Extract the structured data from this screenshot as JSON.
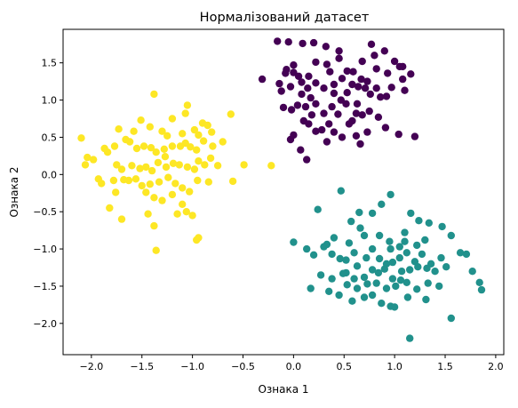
{
  "chart_data": {
    "type": "scatter",
    "title": "Нормалізований датасет",
    "xlabel": "Ознака 1",
    "ylabel": "Ознака 2",
    "xlim": [
      -2.28,
      2.08
    ],
    "ylim": [
      -2.42,
      1.95
    ],
    "xticks": [
      -2.0,
      -1.5,
      -1.0,
      -0.5,
      0.0,
      0.5,
      1.0,
      1.5,
      2.0
    ],
    "xtick_labels": [
      "−2.0",
      "−1.5",
      "−1.0",
      "−0.5",
      "0.0",
      "0.5",
      "1.0",
      "1.5",
      "2.0"
    ],
    "yticks": [
      -2.0,
      -1.5,
      -1.0,
      -0.5,
      0.0,
      0.5,
      1.0,
      1.5
    ],
    "ytick_labels": [
      "−2.0",
      "−1.5",
      "−1.0",
      "−0.5",
      "0.0",
      "0.5",
      "1.0",
      "1.5"
    ],
    "grid": false,
    "series": [
      {
        "color": "#440154",
        "points": [
          [
            -0.16,
            1.79
          ],
          [
            -0.05,
            1.78
          ],
          [
            0.09,
            1.76
          ],
          [
            0.2,
            1.77
          ],
          [
            0.32,
            1.72
          ],
          [
            0.45,
            1.66
          ],
          [
            0.45,
            1.56
          ],
          [
            0.22,
            1.51
          ],
          [
            0.33,
            1.48
          ],
          [
            0.0,
            1.47
          ],
          [
            0.77,
            1.75
          ],
          [
            0.9,
            1.66
          ],
          [
            1.0,
            1.52
          ],
          [
            1.05,
            1.45
          ],
          [
            1.08,
            1.45
          ],
          [
            1.16,
            1.35
          ],
          [
            0.8,
            1.6
          ],
          [
            -0.07,
            1.41
          ],
          [
            0.0,
            1.37
          ],
          [
            -0.08,
            1.36
          ],
          [
            0.05,
            1.32
          ],
          [
            0.15,
            1.32
          ],
          [
            0.36,
            1.38
          ],
          [
            0.53,
            1.39
          ],
          [
            0.59,
            1.38
          ],
          [
            0.67,
            1.28
          ],
          [
            0.73,
            1.25
          ],
          [
            0.82,
            1.42
          ],
          [
            0.68,
            1.52
          ],
          [
            -0.14,
            1.22
          ],
          [
            -0.12,
            1.12
          ],
          [
            -0.03,
            1.18
          ],
          [
            0.08,
            1.24
          ],
          [
            0.14,
            1.16
          ],
          [
            0.22,
            1.23
          ],
          [
            0.3,
            1.16
          ],
          [
            0.4,
            1.21
          ],
          [
            0.48,
            1.29
          ],
          [
            0.58,
            1.21
          ],
          [
            0.64,
            1.18
          ],
          [
            0.71,
            1.16
          ],
          [
            0.76,
            1.08
          ],
          [
            0.82,
            1.16
          ],
          [
            0.86,
            1.04
          ],
          [
            0.92,
            1.05
          ],
          [
            0.97,
            1.17
          ],
          [
            1.08,
            1.28
          ],
          [
            1.1,
            1.13
          ],
          [
            -0.1,
            0.9
          ],
          [
            -0.02,
            0.87
          ],
          [
            0.04,
            0.93
          ],
          [
            0.12,
            0.91
          ],
          [
            0.17,
            1.03
          ],
          [
            0.22,
            0.95
          ],
          [
            0.08,
            1.08
          ],
          [
            0.3,
            0.82
          ],
          [
            0.38,
            0.91
          ],
          [
            0.47,
            1.0
          ],
          [
            0.52,
            0.95
          ],
          [
            0.62,
            0.82
          ],
          [
            0.63,
            0.95
          ],
          [
            0.68,
            0.8
          ],
          [
            0.75,
            0.85
          ],
          [
            0.84,
            0.77
          ],
          [
            0.91,
            0.63
          ],
          [
            0.1,
            0.72
          ],
          [
            0.15,
            0.68
          ],
          [
            0.22,
            0.58
          ],
          [
            0.28,
            0.6
          ],
          [
            0.35,
            0.68
          ],
          [
            0.4,
            0.57
          ],
          [
            0.48,
            0.5
          ],
          [
            0.55,
            0.68
          ],
          [
            0.62,
            0.52
          ],
          [
            0.66,
            0.41
          ],
          [
            0.73,
            0.57
          ],
          [
            -0.03,
            0.47
          ],
          [
            0.07,
            0.33
          ],
          [
            0.13,
            0.2
          ],
          [
            -0.31,
            1.28
          ],
          [
            1.04,
            0.54
          ],
          [
            1.2,
            0.51
          ],
          [
            0.33,
            0.44
          ],
          [
            0.0,
            0.53
          ],
          [
            0.44,
            0.81
          ],
          [
            0.53,
            1.1
          ],
          [
            0.93,
            1.36
          ],
          [
            0.18,
            0.8
          ],
          [
            0.4,
            1.09
          ],
          [
            0.58,
            0.72
          ]
        ]
      },
      {
        "color": "#21918c",
        "points": [
          [
            0.47,
            -0.22
          ],
          [
            0.96,
            -0.27
          ],
          [
            0.87,
            -0.4
          ],
          [
            0.24,
            -0.47
          ],
          [
            0.65,
            -0.51
          ],
          [
            0.78,
            -0.52
          ],
          [
            1.16,
            -0.52
          ],
          [
            1.24,
            -0.62
          ],
          [
            1.34,
            -0.65
          ],
          [
            0.57,
            -0.63
          ],
          [
            1.47,
            -0.7
          ],
          [
            1.1,
            -0.78
          ],
          [
            0.66,
            -0.72
          ],
          [
            0.0,
            -0.91
          ],
          [
            0.4,
            -0.85
          ],
          [
            0.33,
            -0.94
          ],
          [
            0.55,
            -0.92
          ],
          [
            0.7,
            -0.82
          ],
          [
            0.85,
            -0.82
          ],
          [
            0.95,
            -0.9
          ],
          [
            0.96,
            -1.0
          ],
          [
            1.05,
            -0.97
          ],
          [
            1.1,
            -0.9
          ],
          [
            1.22,
            -0.95
          ],
          [
            1.3,
            -0.88
          ],
          [
            1.56,
            -0.82
          ],
          [
            0.13,
            -1.0
          ],
          [
            0.2,
            -1.08
          ],
          [
            0.3,
            -0.97
          ],
          [
            0.38,
            -1.07
          ],
          [
            0.46,
            -1.13
          ],
          [
            0.52,
            -1.15
          ],
          [
            0.6,
            -1.05
          ],
          [
            0.72,
            -1.12
          ],
          [
            0.78,
            -1.0
          ],
          [
            0.85,
            -1.13
          ],
          [
            0.92,
            -1.2
          ],
          [
            0.98,
            -1.18
          ],
          [
            1.05,
            -1.12
          ],
          [
            1.12,
            -1.05
          ],
          [
            1.2,
            -1.17
          ],
          [
            1.27,
            -1.07
          ],
          [
            1.36,
            -1.2
          ],
          [
            1.46,
            -1.12
          ],
          [
            1.65,
            -1.05
          ],
          [
            1.71,
            -1.07
          ],
          [
            0.27,
            -1.35
          ],
          [
            0.38,
            -1.4
          ],
          [
            0.52,
            -1.32
          ],
          [
            0.63,
            -1.23
          ],
          [
            0.7,
            -1.38
          ],
          [
            0.78,
            -1.28
          ],
          [
            0.84,
            -1.32
          ],
          [
            0.9,
            -1.27
          ],
          [
            0.98,
            -1.4
          ],
          [
            1.07,
            -1.3
          ],
          [
            1.15,
            -1.28
          ],
          [
            1.23,
            -1.24
          ],
          [
            1.32,
            -1.26
          ],
          [
            1.4,
            -1.3
          ],
          [
            1.51,
            -1.24
          ],
          [
            1.77,
            -1.3
          ],
          [
            1.84,
            -1.45
          ],
          [
            0.17,
            -1.53
          ],
          [
            0.35,
            -1.57
          ],
          [
            0.45,
            -1.62
          ],
          [
            0.53,
            -1.48
          ],
          [
            0.63,
            -1.53
          ],
          [
            0.73,
            -1.47
          ],
          [
            0.82,
            -1.46
          ],
          [
            0.92,
            -1.53
          ],
          [
            1.01,
            -1.5
          ],
          [
            1.12,
            -1.45
          ],
          [
            1.22,
            -1.54
          ],
          [
            1.33,
            -1.46
          ],
          [
            1.44,
            -1.5
          ],
          [
            0.58,
            -1.7
          ],
          [
            0.7,
            -1.65
          ],
          [
            0.78,
            -1.62
          ],
          [
            0.87,
            -1.73
          ],
          [
            0.96,
            -1.77
          ],
          [
            1.13,
            -1.65
          ],
          [
            1.31,
            -1.68
          ],
          [
            1.56,
            -1.93
          ],
          [
            1.15,
            -2.2
          ],
          [
            1.86,
            -1.55
          ],
          [
            1.0,
            -1.78
          ],
          [
            0.49,
            -1.33
          ],
          [
            1.06,
            -1.42
          ],
          [
            0.6,
            -1.4
          ]
        ]
      },
      {
        "color": "#fde725",
        "points": [
          [
            -1.38,
            1.08
          ],
          [
            -1.05,
            0.93
          ],
          [
            -1.51,
            0.73
          ],
          [
            -1.2,
            0.75
          ],
          [
            -1.07,
            0.82
          ],
          [
            -0.9,
            0.69
          ],
          [
            -0.81,
            0.57
          ],
          [
            -0.62,
            0.81
          ],
          [
            -0.85,
            0.66
          ],
          [
            -1.73,
            0.61
          ],
          [
            -1.58,
            0.58
          ],
          [
            -1.42,
            0.64
          ],
          [
            -1.3,
            0.58
          ],
          [
            -1.25,
            0.52
          ],
          [
            -1.1,
            0.55
          ],
          [
            -0.98,
            0.6
          ],
          [
            -0.94,
            0.53
          ],
          [
            -2.1,
            0.49
          ],
          [
            -2.04,
            0.23
          ],
          [
            -1.98,
            0.2
          ],
          [
            -1.87,
            0.35
          ],
          [
            -1.84,
            0.3
          ],
          [
            -1.77,
            0.38
          ],
          [
            -1.66,
            0.47
          ],
          [
            -1.62,
            0.44
          ],
          [
            -1.55,
            0.35
          ],
          [
            -1.48,
            0.38
          ],
          [
            -1.41,
            0.36
          ],
          [
            -1.36,
            0.3
          ],
          [
            -1.28,
            0.34
          ],
          [
            -1.2,
            0.38
          ],
          [
            -1.12,
            0.38
          ],
          [
            -1.07,
            0.42
          ],
          [
            -1.02,
            0.37
          ],
          [
            -0.96,
            0.33
          ],
          [
            -0.89,
            0.45
          ],
          [
            -0.82,
            0.22
          ],
          [
            -0.7,
            0.44
          ],
          [
            -2.06,
            0.13
          ],
          [
            -1.75,
            0.13
          ],
          [
            -1.7,
            0.07
          ],
          [
            -1.6,
            0.12
          ],
          [
            -1.52,
            0.08
          ],
          [
            -1.46,
            0.1
          ],
          [
            -1.4,
            0.05
          ],
          [
            -1.34,
            0.16
          ],
          [
            -1.26,
            0.1
          ],
          [
            -1.19,
            0.15
          ],
          [
            -1.13,
            0.13
          ],
          [
            -1.05,
            0.1
          ],
          [
            -0.98,
            0.07
          ],
          [
            -0.94,
            0.18
          ],
          [
            -0.88,
            0.13
          ],
          [
            -0.75,
            0.12
          ],
          [
            -0.49,
            0.13
          ],
          [
            -0.22,
            0.12
          ],
          [
            -1.93,
            -0.06
          ],
          [
            -1.78,
            -0.08
          ],
          [
            -1.68,
            -0.07
          ],
          [
            -1.56,
            -0.06
          ],
          [
            -1.5,
            -0.15
          ],
          [
            -1.42,
            -0.13
          ],
          [
            -1.33,
            -0.1
          ],
          [
            -1.24,
            -0.04
          ],
          [
            -1.17,
            -0.12
          ],
          [
            -1.1,
            -0.18
          ],
          [
            -1.03,
            -0.23
          ],
          [
            -0.95,
            -0.08
          ],
          [
            -0.84,
            -0.1
          ],
          [
            -0.6,
            -0.09
          ],
          [
            -1.9,
            -0.12
          ],
          [
            -1.46,
            -0.24
          ],
          [
            -1.38,
            -0.31
          ],
          [
            -1.3,
            -0.35
          ],
          [
            -1.2,
            -0.27
          ],
          [
            -1.1,
            -0.4
          ],
          [
            -1.06,
            -0.5
          ],
          [
            -1.0,
            -0.55
          ],
          [
            -1.76,
            -0.24
          ],
          [
            -1.82,
            -0.45
          ],
          [
            -1.7,
            -0.6
          ],
          [
            -1.44,
            -0.53
          ],
          [
            -1.38,
            -0.69
          ],
          [
            -0.96,
            -0.88
          ],
          [
            -0.94,
            -0.85
          ],
          [
            -1.36,
            -1.02
          ],
          [
            -1.15,
            -0.53
          ],
          [
            -1.27,
            0.24
          ],
          [
            -0.8,
            0.38
          ],
          [
            -1.63,
            -0.08
          ]
        ]
      }
    ]
  }
}
